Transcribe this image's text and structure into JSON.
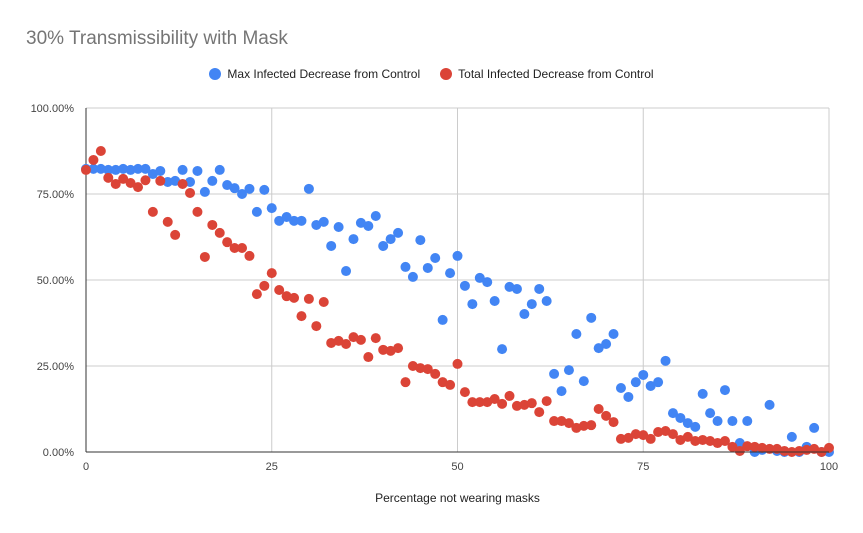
{
  "chart_data": {
    "type": "scatter",
    "title": "30% Transmissibility with Mask",
    "xlabel": "Percentage not wearing masks",
    "ylabel": "",
    "xlim": [
      0,
      100
    ],
    "ylim": [
      0,
      100
    ],
    "x_ticks": [
      "0",
      "25",
      "50",
      "75",
      "100"
    ],
    "y_ticks": [
      "0.00%",
      "25.00%",
      "50.00%",
      "75.00%",
      "100.00%"
    ],
    "grid": true,
    "legend_position": "top",
    "series": [
      {
        "name": "Max Infected Decrease from Control",
        "color": "#4285f4",
        "values": [
          82.3,
          82.3,
          82.3,
          82,
          82,
          82.3,
          82,
          82.3,
          82.3,
          80.8,
          81.7,
          78.5,
          78.8,
          82,
          78.5,
          81.7,
          75.6,
          78.8,
          82,
          77.6,
          76.7,
          75,
          76.5,
          69.8,
          76.2,
          70.9,
          67.2,
          68.3,
          67.2,
          67.2,
          76.5,
          66,
          66.9,
          59.9,
          65.4,
          52.6,
          61.9,
          66.6,
          65.7,
          68.6,
          59.9,
          61.9,
          63.7,
          53.8,
          50.9,
          61.6,
          53.5,
          56.4,
          38.4,
          52,
          57,
          48.3,
          43,
          50.6,
          49.4,
          43.9,
          29.9,
          48,
          47.4,
          40.1,
          43,
          47.4,
          43.9,
          22.7,
          17.7,
          23.8,
          34.3,
          20.6,
          39,
          30.2,
          31.4,
          34.3,
          18.6,
          16,
          20.3,
          22.4,
          19.2,
          20.3,
          26.5,
          11.3,
          9.9,
          8.4,
          7.3,
          16.9,
          11.3,
          9,
          18,
          9,
          2.6,
          9,
          0,
          0.6,
          13.7,
          0.3,
          0,
          4.4,
          0,
          1.5,
          7,
          0,
          0
        ]
      },
      {
        "name": "Total Infected Decrease from Control",
        "color": "#db4437",
        "values": [
          82,
          84.9,
          87.5,
          79.7,
          77.9,
          79.4,
          78.2,
          77,
          79,
          69.8,
          78.8,
          66.9,
          63.1,
          77.9,
          75.3,
          69.8,
          56.7,
          66,
          63.7,
          61,
          59.3,
          59.3,
          57,
          45.9,
          48.3,
          52,
          47.1,
          45.3,
          44.8,
          39.5,
          44.5,
          36.6,
          43.6,
          31.7,
          32.3,
          31.4,
          33.4,
          32.6,
          27.6,
          33.1,
          29.7,
          29.4,
          30.2,
          20.3,
          25,
          24.4,
          24.1,
          22.7,
          20.3,
          19.5,
          25.6,
          17.4,
          14.5,
          14.5,
          14.5,
          15.4,
          14,
          16.3,
          13.4,
          13.7,
          14.2,
          11.6,
          14.8,
          9,
          9,
          8.4,
          7,
          7.6,
          7.8,
          12.5,
          10.5,
          8.7,
          3.8,
          4.1,
          5.2,
          4.9,
          3.8,
          5.8,
          6.1,
          5.2,
          3.5,
          4.4,
          3.2,
          3.5,
          3.2,
          2.6,
          3.2,
          1.5,
          0.3,
          1.7,
          1.5,
          1.2,
          0.9,
          0.9,
          0.3,
          0,
          0.3,
          0.6,
          0.9,
          0,
          1.2
        ]
      }
    ]
  }
}
